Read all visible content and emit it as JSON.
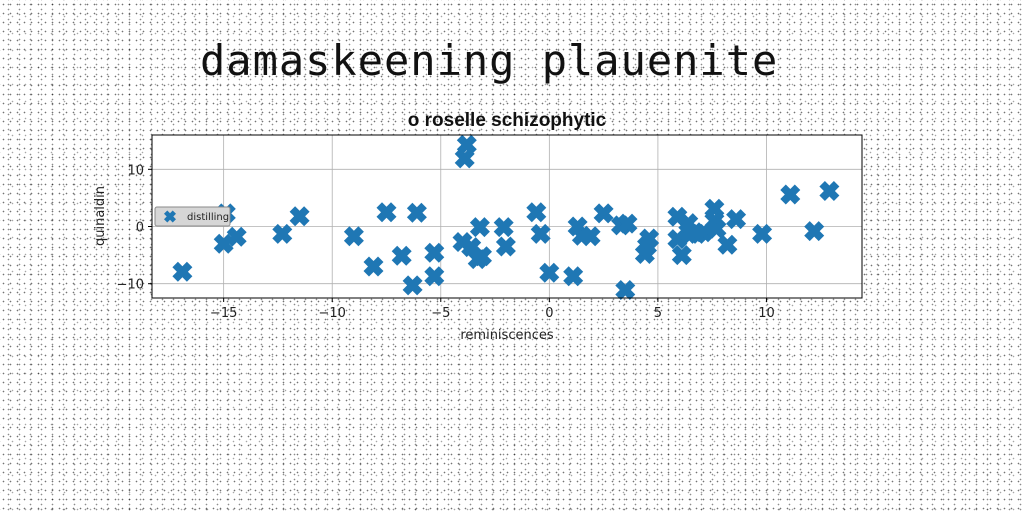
{
  "page": {
    "title": "damaskeening plauenite"
  },
  "colors": {
    "marker": "#1f77b4",
    "grid": "#b0b0b0",
    "axis": "#000000",
    "background": "#ffffff"
  },
  "chart_data": {
    "type": "scatter",
    "title": "o roselle schizophytic",
    "xlabel": "reminiscences",
    "ylabel": "quinaldin",
    "xlim": [
      -18.3,
      14.4
    ],
    "ylim": [
      -12.5,
      16
    ],
    "xticks": [
      -15,
      -10,
      -5,
      0,
      5,
      10
    ],
    "xtick_labels": [
      "−15",
      "−10",
      "−5",
      "0",
      "5",
      "10"
    ],
    "yticks": [
      -10,
      0,
      10
    ],
    "ytick_labels": [
      "−10",
      "0",
      "10"
    ],
    "grid": true,
    "legend": {
      "position": "center-left",
      "entries": [
        "distilling"
      ]
    },
    "marker": "X",
    "series": [
      {
        "name": "distilling",
        "points": [
          [
            -16.9,
            -7.9
          ],
          [
            -14.9,
            2.3
          ],
          [
            -15.0,
            -3.0
          ],
          [
            -14.4,
            -1.8
          ],
          [
            -12.3,
            -1.3
          ],
          [
            -11.5,
            1.8
          ],
          [
            -9.0,
            -1.7
          ],
          [
            -8.1,
            -7.0
          ],
          [
            -7.5,
            2.5
          ],
          [
            -6.8,
            -5.1
          ],
          [
            -6.3,
            -10.3
          ],
          [
            -6.1,
            2.4
          ],
          [
            -5.3,
            -4.6
          ],
          [
            -5.3,
            -8.7
          ],
          [
            -4.0,
            -2.7
          ],
          [
            -3.9,
            11.9
          ],
          [
            -3.8,
            14.3
          ],
          [
            -3.6,
            -3.6
          ],
          [
            -3.3,
            -5.7
          ],
          [
            -3.2,
            -0.1
          ],
          [
            -3.1,
            -5.2
          ],
          [
            -2.1,
            -0.1
          ],
          [
            -2.0,
            -3.5
          ],
          [
            -0.6,
            2.5
          ],
          [
            -0.4,
            -1.3
          ],
          [
            0.0,
            -8.1
          ],
          [
            1.1,
            -8.7
          ],
          [
            1.3,
            0.0
          ],
          [
            1.5,
            -1.6
          ],
          [
            1.9,
            -1.7
          ],
          [
            2.5,
            2.3
          ],
          [
            3.3,
            0.2
          ],
          [
            3.5,
            -11.1
          ],
          [
            3.6,
            0.5
          ],
          [
            4.4,
            -4.8
          ],
          [
            4.5,
            -3.4
          ],
          [
            4.6,
            -2.1
          ],
          [
            5.9,
            1.7
          ],
          [
            5.9,
            -2.2
          ],
          [
            6.1,
            -5.0
          ],
          [
            6.4,
            0.6
          ],
          [
            6.5,
            -1.3
          ],
          [
            6.8,
            -1.3
          ],
          [
            7.1,
            -1.0
          ],
          [
            7.6,
            1.0
          ],
          [
            7.6,
            3.1
          ],
          [
            7.7,
            -0.4
          ],
          [
            8.2,
            -3.2
          ],
          [
            8.6,
            1.3
          ],
          [
            9.8,
            -1.3
          ],
          [
            11.1,
            5.6
          ],
          [
            12.2,
            -0.8
          ],
          [
            12.9,
            6.2
          ]
        ]
      }
    ]
  }
}
